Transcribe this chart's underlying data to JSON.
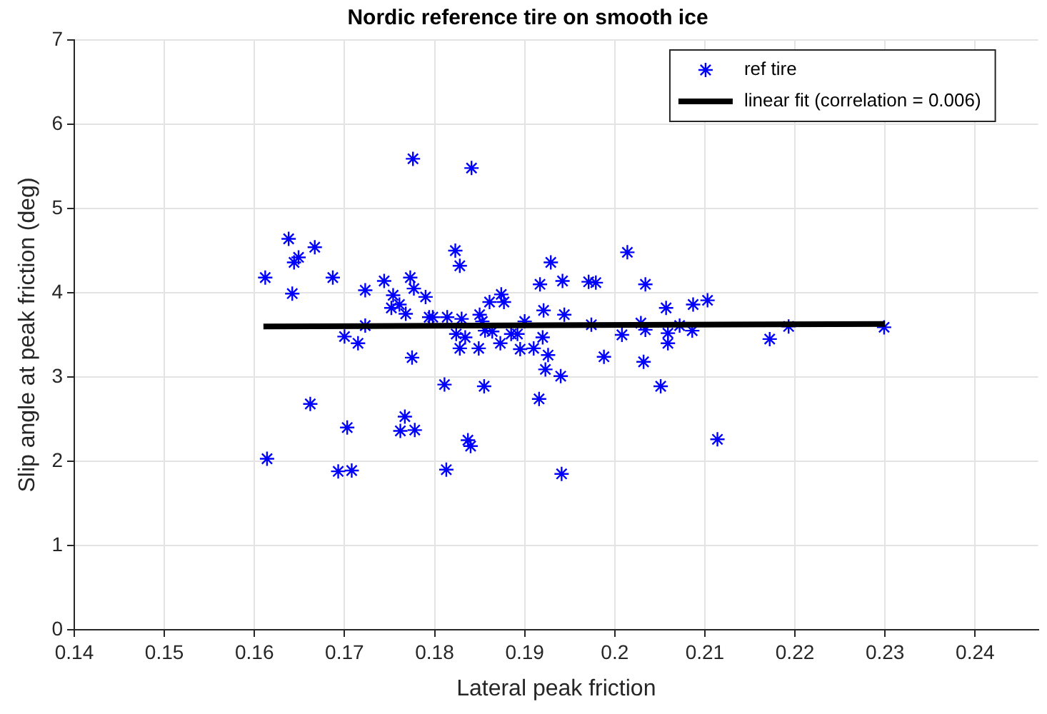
{
  "chart_data": {
    "type": "scatter",
    "title": "Nordic reference tire on smooth ice",
    "xlabel": "Lateral peak friction",
    "ylabel": "Slip angle at peak friction (deg)",
    "xlim": [
      0.14,
      0.247
    ],
    "xticks": [
      0.14,
      0.15,
      0.16,
      0.17,
      0.18,
      0.19,
      0.2,
      0.21,
      0.22,
      0.23,
      0.24
    ],
    "ylim": [
      0,
      7
    ],
    "yticks": [
      0,
      1,
      2,
      3,
      4,
      5,
      6,
      7
    ],
    "grid": true,
    "legend": "top right",
    "series": [
      {
        "name": "ref tire",
        "marker": "cross",
        "color": "#0000ff",
        "x": [
          0.1776,
          0.1638,
          0.1667,
          0.1649,
          0.1644,
          0.1612,
          0.1687,
          0.1642,
          0.1723,
          0.1744,
          0.1773,
          0.1777,
          0.179,
          0.1754,
          0.1752,
          0.1761,
          0.1768,
          0.1723,
          0.17,
          0.1715,
          0.1775,
          0.1662,
          0.1767,
          0.1703,
          0.1762,
          0.1778,
          0.1614,
          0.1693,
          0.1708,
          0.1794,
          0.1841,
          0.1823,
          0.1828,
          0.1929,
          0.1917,
          0.1942,
          0.1971,
          0.1979,
          0.1861,
          0.1874,
          0.1877,
          0.1798,
          0.1814,
          0.183,
          0.185,
          0.1853,
          0.1921,
          0.1944,
          0.19,
          0.1824,
          0.1834,
          0.1856,
          0.1864,
          0.1885,
          0.1892,
          0.192,
          0.1828,
          0.1849,
          0.1873,
          0.1895,
          0.191,
          0.1926,
          0.1923,
          0.194,
          0.1988,
          0.1974,
          0.1916,
          0.1811,
          0.1855,
          0.1837,
          0.184,
          0.1813,
          0.1941,
          0.2014,
          0.2034,
          0.2057,
          0.2087,
          0.2103,
          0.2029,
          0.2034,
          0.2008,
          0.2059,
          0.2072,
          0.2086,
          0.2059,
          0.2032,
          0.2051,
          0.2114,
          0.2172,
          0.2193,
          0.2299
        ],
        "values": [
          5.59,
          4.64,
          4.54,
          4.42,
          4.36,
          4.18,
          4.18,
          3.99,
          4.03,
          4.14,
          4.18,
          4.05,
          3.95,
          3.97,
          3.82,
          3.86,
          3.75,
          3.61,
          3.48,
          3.4,
          3.23,
          2.68,
          2.53,
          2.4,
          2.36,
          2.37,
          2.03,
          1.88,
          1.89,
          3.71,
          5.48,
          4.5,
          4.32,
          4.36,
          4.1,
          4.14,
          4.13,
          4.12,
          3.89,
          3.98,
          3.89,
          3.71,
          3.71,
          3.69,
          3.74,
          3.66,
          3.79,
          3.74,
          3.66,
          3.51,
          3.47,
          3.55,
          3.54,
          3.51,
          3.51,
          3.47,
          3.34,
          3.34,
          3.4,
          3.33,
          3.34,
          3.26,
          3.09,
          3.01,
          3.24,
          3.62,
          2.74,
          2.91,
          2.89,
          2.25,
          2.18,
          1.9,
          1.85,
          4.48,
          4.1,
          3.82,
          3.86,
          3.91,
          3.64,
          3.56,
          3.5,
          3.52,
          3.61,
          3.55,
          3.4,
          3.18,
          2.89,
          2.26,
          3.45,
          3.6,
          3.59
        ]
      },
      {
        "name": "linear fit (correlation = 0.006)",
        "type": "line",
        "marker": "none",
        "color": "#000000",
        "x": [
          0.161,
          0.23
        ],
        "values": [
          3.6,
          3.63
        ]
      }
    ]
  }
}
